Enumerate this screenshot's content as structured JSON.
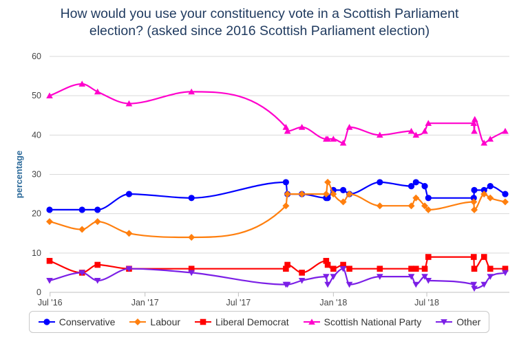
{
  "chart_data": {
    "type": "line",
    "title": [
      "How would you use your constituency vote in a Scottish Parliament",
      "election? (asked since 2016 Scottish Parliament election)"
    ],
    "ylabel": "percentage",
    "ylim": [
      0,
      60
    ],
    "yticks": [
      0,
      10,
      20,
      30,
      40,
      50,
      60
    ],
    "xlim": [
      "2016-06-30",
      "2018-12-08"
    ],
    "xticks": [
      {
        "date": "2016-07-01",
        "label": "Jul '16"
      },
      {
        "date": "2017-01-01",
        "label": "Jan '17"
      },
      {
        "date": "2017-07-01",
        "label": "Jul '17"
      },
      {
        "date": "2018-01-01",
        "label": "Jan '18"
      },
      {
        "date": "2018-07-01",
        "label": "Jul '18"
      }
    ],
    "grid": true,
    "legend_position": "bottom",
    "series": [
      {
        "name": "Conservative",
        "color": "#0000ff",
        "marker": "circle",
        "points": [
          [
            "2016-06-30",
            21
          ],
          [
            "2016-09-01",
            21
          ],
          [
            "2016-10-01",
            21
          ],
          [
            "2016-12-01",
            25
          ],
          [
            "2017-04-01",
            24
          ],
          [
            "2017-10-01",
            28
          ],
          [
            "2017-10-04",
            25
          ],
          [
            "2017-11-01",
            25
          ],
          [
            "2017-12-18",
            24
          ],
          [
            "2017-12-21",
            24
          ],
          [
            "2018-01-01",
            26
          ],
          [
            "2018-01-20",
            26
          ],
          [
            "2018-02-01",
            25
          ],
          [
            "2018-04-01",
            28
          ],
          [
            "2018-06-01",
            27
          ],
          [
            "2018-06-10",
            28
          ],
          [
            "2018-06-27",
            27
          ],
          [
            "2018-07-04",
            24
          ],
          [
            "2018-09-30",
            24
          ],
          [
            "2018-10-01",
            26
          ],
          [
            "2018-10-20",
            26
          ],
          [
            "2018-11-01",
            27
          ],
          [
            "2018-11-30",
            25
          ]
        ]
      },
      {
        "name": "Labour",
        "color": "#ff7f0e",
        "marker": "diamond",
        "points": [
          [
            "2016-06-30",
            18
          ],
          [
            "2016-09-01",
            16
          ],
          [
            "2016-10-01",
            18
          ],
          [
            "2016-12-01",
            15
          ],
          [
            "2017-04-01",
            14
          ],
          [
            "2017-10-01",
            22
          ],
          [
            "2017-10-04",
            25
          ],
          [
            "2017-11-01",
            25
          ],
          [
            "2017-12-18",
            25
          ],
          [
            "2017-12-21",
            28
          ],
          [
            "2018-01-01",
            25
          ],
          [
            "2018-01-20",
            23
          ],
          [
            "2018-02-01",
            25
          ],
          [
            "2018-04-01",
            22
          ],
          [
            "2018-06-01",
            22
          ],
          [
            "2018-06-10",
            24
          ],
          [
            "2018-06-27",
            22
          ],
          [
            "2018-07-04",
            21
          ],
          [
            "2018-09-30",
            23
          ],
          [
            "2018-10-01",
            21
          ],
          [
            "2018-10-20",
            25
          ],
          [
            "2018-11-01",
            24
          ],
          [
            "2018-11-30",
            23
          ]
        ]
      },
      {
        "name": "Liberal Democrat",
        "color": "#ff0000",
        "marker": "square",
        "points": [
          [
            "2016-06-30",
            8
          ],
          [
            "2016-09-01",
            5
          ],
          [
            "2016-10-01",
            7
          ],
          [
            "2016-12-01",
            6
          ],
          [
            "2017-04-01",
            6
          ],
          [
            "2017-10-01",
            6
          ],
          [
            "2017-10-04",
            7
          ],
          [
            "2017-11-01",
            5
          ],
          [
            "2017-12-18",
            8
          ],
          [
            "2017-12-21",
            7
          ],
          [
            "2018-01-01",
            6
          ],
          [
            "2018-01-20",
            7
          ],
          [
            "2018-02-01",
            6
          ],
          [
            "2018-04-01",
            6
          ],
          [
            "2018-06-01",
            6
          ],
          [
            "2018-06-10",
            6
          ],
          [
            "2018-06-27",
            6
          ],
          [
            "2018-07-04",
            9
          ],
          [
            "2018-09-30",
            9
          ],
          [
            "2018-10-01",
            6
          ],
          [
            "2018-10-20",
            9
          ],
          [
            "2018-11-01",
            6
          ],
          [
            "2018-11-30",
            6
          ]
        ]
      },
      {
        "name": "Scottish National Party",
        "color": "#ff00cc",
        "marker": "triangle",
        "points": [
          [
            "2016-06-30",
            50
          ],
          [
            "2016-09-01",
            53
          ],
          [
            "2016-10-01",
            51
          ],
          [
            "2016-12-01",
            48
          ],
          [
            "2017-04-01",
            51
          ],
          [
            "2017-10-01",
            42
          ],
          [
            "2017-10-04",
            41
          ],
          [
            "2017-11-01",
            42
          ],
          [
            "2017-12-18",
            39
          ],
          [
            "2017-12-21",
            39
          ],
          [
            "2018-01-01",
            39
          ],
          [
            "2018-01-20",
            38
          ],
          [
            "2018-02-01",
            42
          ],
          [
            "2018-04-01",
            40
          ],
          [
            "2018-06-01",
            41
          ],
          [
            "2018-06-10",
            40
          ],
          [
            "2018-06-27",
            41
          ],
          [
            "2018-07-04",
            43
          ],
          [
            "2018-09-30",
            43
          ],
          [
            "2018-10-01",
            41
          ],
          [
            "2018-10-02",
            44
          ],
          [
            "2018-10-20",
            38
          ],
          [
            "2018-11-01",
            39
          ],
          [
            "2018-11-30",
            41
          ]
        ]
      },
      {
        "name": "Other",
        "color": "#7b1fe6",
        "marker": "triangle-down",
        "points": [
          [
            "2016-06-30",
            3
          ],
          [
            "2016-09-01",
            5
          ],
          [
            "2016-10-01",
            3
          ],
          [
            "2016-12-01",
            6
          ],
          [
            "2017-04-01",
            5
          ],
          [
            "2017-10-01",
            2
          ],
          [
            "2017-10-04",
            2
          ],
          [
            "2017-11-01",
            3
          ],
          [
            "2017-12-18",
            4
          ],
          [
            "2017-12-21",
            2
          ],
          [
            "2018-01-01",
            4
          ],
          [
            "2018-01-20",
            6
          ],
          [
            "2018-02-01",
            2
          ],
          [
            "2018-04-01",
            4
          ],
          [
            "2018-06-01",
            4
          ],
          [
            "2018-06-10",
            2
          ],
          [
            "2018-06-27",
            4
          ],
          [
            "2018-07-04",
            3
          ],
          [
            "2018-09-30",
            2
          ],
          [
            "2018-10-01",
            1
          ],
          [
            "2018-10-20",
            2
          ],
          [
            "2018-11-01",
            4
          ],
          [
            "2018-11-30",
            5
          ]
        ]
      }
    ]
  }
}
